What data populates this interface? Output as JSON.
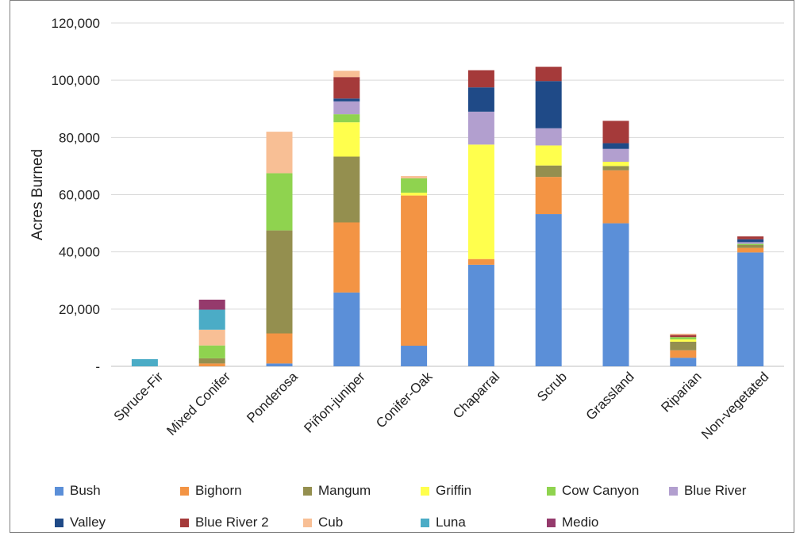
{
  "chart_data": {
    "type": "bar",
    "stacked": true,
    "ylabel": "Acres Burned",
    "ylim": [
      0,
      120000
    ],
    "yticks": [
      "-",
      "20,000",
      "40,000",
      "60,000",
      "80,000",
      "100,000",
      "120,000"
    ],
    "grid": true,
    "legend_position": "bottom",
    "categories": [
      "Spruce-Fir",
      "Mixed Conifer",
      "Ponderosa",
      "Piñon-juniper",
      "Conifer-Oak",
      "Chaparral",
      "Scrub",
      "Grassland",
      "Riparian",
      "Non-vegetated"
    ],
    "series": [
      {
        "name": "Bush",
        "color": "#5b8fd8",
        "values": [
          0,
          0,
          1000,
          25800,
          7200,
          35500,
          53200,
          50000,
          3000,
          39800
        ]
      },
      {
        "name": "Bighorn",
        "color": "#f39444",
        "values": [
          0,
          1000,
          10500,
          24500,
          52500,
          2000,
          13000,
          18500,
          2600,
          1600
        ]
      },
      {
        "name": "Mangum",
        "color": "#948f4f",
        "values": [
          0,
          1800,
          36000,
          23000,
          0,
          0,
          4000,
          1500,
          3000,
          1000
        ]
      },
      {
        "name": "Griffin",
        "color": "#ffff4d",
        "values": [
          0,
          0,
          0,
          12000,
          1000,
          40000,
          7000,
          1500,
          800,
          0
        ]
      },
      {
        "name": "Cow Canyon",
        "color": "#8fd34f",
        "values": [
          0,
          4500,
          20000,
          2800,
          5000,
          0,
          0,
          0,
          800,
          400
        ]
      },
      {
        "name": "Blue River",
        "color": "#b29fcf",
        "values": [
          0,
          0,
          0,
          4500,
          0,
          11500,
          6000,
          4500,
          0,
          600
        ]
      },
      {
        "name": "Valley",
        "color": "#1f4a87",
        "values": [
          0,
          0,
          0,
          1000,
          0,
          8500,
          16500,
          2000,
          0,
          1000
        ]
      },
      {
        "name": "Blue River 2",
        "color": "#a53a3a",
        "values": [
          0,
          0,
          0,
          7500,
          0,
          6000,
          5000,
          7800,
          800,
          1000
        ]
      },
      {
        "name": "Cub",
        "color": "#f8bf95",
        "values": [
          0,
          5500,
          14500,
          2200,
          800,
          0,
          0,
          0,
          400,
          0
        ]
      },
      {
        "name": "Luna",
        "color": "#4bacc6",
        "values": [
          2500,
          7000,
          0,
          0,
          0,
          0,
          0,
          0,
          0,
          0
        ]
      },
      {
        "name": "Medio",
        "color": "#953a6c",
        "values": [
          0,
          3500,
          0,
          0,
          0,
          0,
          0,
          0,
          0,
          0
        ]
      }
    ]
  }
}
